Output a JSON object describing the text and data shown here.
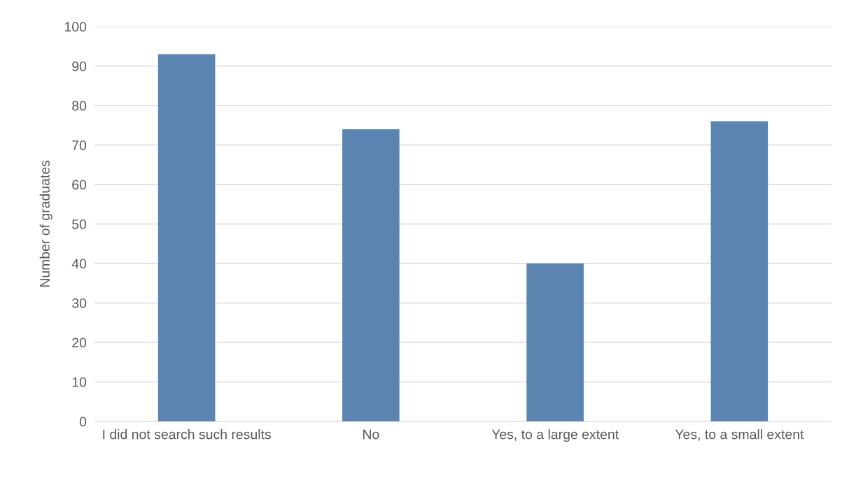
{
  "chart_data": {
    "type": "bar",
    "ylabel": "Number of graduates",
    "categories": [
      "I did not search such results",
      "No",
      "Yes, to a large extent",
      "Yes, to a small extent"
    ],
    "values": [
      93,
      74,
      40,
      76
    ],
    "color": "#5b84b1",
    "ylim": [
      0,
      100
    ],
    "yticks": [
      0,
      10,
      20,
      30,
      40,
      50,
      60,
      70,
      80,
      90,
      100
    ],
    "grid": "y"
  }
}
